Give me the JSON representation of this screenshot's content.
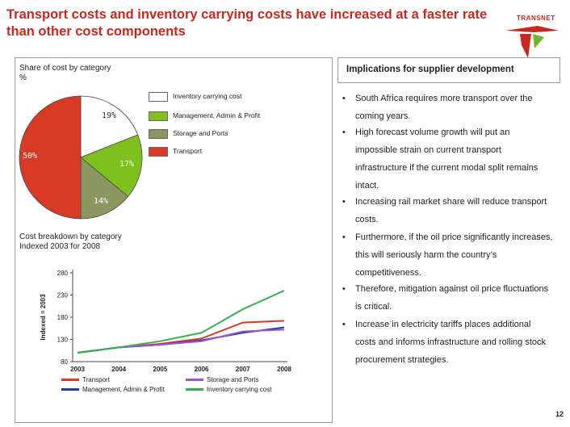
{
  "title": "Transport costs and inventory carrying costs have increased at a faster rate than other cost components",
  "logo_text": "TRANSNET",
  "left": {
    "share_label_line1": "Share of cost by category",
    "share_label_line2": "%",
    "pie_labels": [
      "19%",
      "17%",
      "14%",
      "50%"
    ],
    "breakdown_line1": "Cost breakdown by category",
    "breakdown_line2": "Indexed 2003 for 2008"
  },
  "legend": [
    {
      "label": "Inventory carrying cost",
      "color": "#ffffff"
    },
    {
      "label": "Management, Admin & Profit",
      "color": "#7ec11e"
    },
    {
      "label": "Storage and Ports",
      "color": "#8c9660"
    },
    {
      "label": "Transport",
      "color": "#d93a25"
    }
  ],
  "right": {
    "heading": "Implications for supplier development",
    "bullets": [
      "South Africa requires more transport  over the coming years.",
      "High forecast volume growth will put an impossible strain on current transport infrastructure if the current modal split remains intact.",
      "Increasing rail market share will reduce transport costs.",
      "Furthermore, if the oil price significantly increases, this will seriously harm the country’s competitiveness.",
      "Therefore, mitigation against oil price fluctuations is critical.",
      "Increase in electricity tariffs places additional costs and informs infrastructure and rolling stock procurement strategies."
    ],
    "bullet_char": "•"
  },
  "page_number": "12",
  "chart_data": [
    {
      "type": "pie",
      "categories": [
        "Inventory carrying cost",
        "Management, Admin & Profit",
        "Storage and Ports",
        "Transport"
      ],
      "values": [
        19,
        17,
        14,
        50
      ],
      "colors": [
        "#ffffff",
        "#7ec11e",
        "#8c9660",
        "#d93a25"
      ],
      "legend_position": "right"
    },
    {
      "type": "line",
      "ylabel": "Indexed = 2003",
      "x": [
        2003,
        2004,
        2005,
        2006,
        2007,
        2008
      ],
      "yticks": [
        80,
        130,
        180,
        230,
        280
      ],
      "ylim": [
        80,
        280
      ],
      "series": [
        {
          "name": "Transport",
          "color": "#d93a25",
          "values": [
            100,
            112,
            120,
            132,
            168,
            172
          ]
        },
        {
          "name": "Management, Admin & Profit",
          "color": "#1f3fa0",
          "values": [
            100,
            112,
            118,
            128,
            145,
            157
          ]
        },
        {
          "name": "Storage and Ports",
          "color": "#9b57c8",
          "values": [
            100,
            112,
            118,
            126,
            148,
            152
          ]
        },
        {
          "name": "Inventory carrying cost",
          "color": "#2fb34a",
          "values": [
            100,
            112,
            126,
            145,
            198,
            240
          ]
        }
      ],
      "legend_position": "bottom"
    }
  ]
}
